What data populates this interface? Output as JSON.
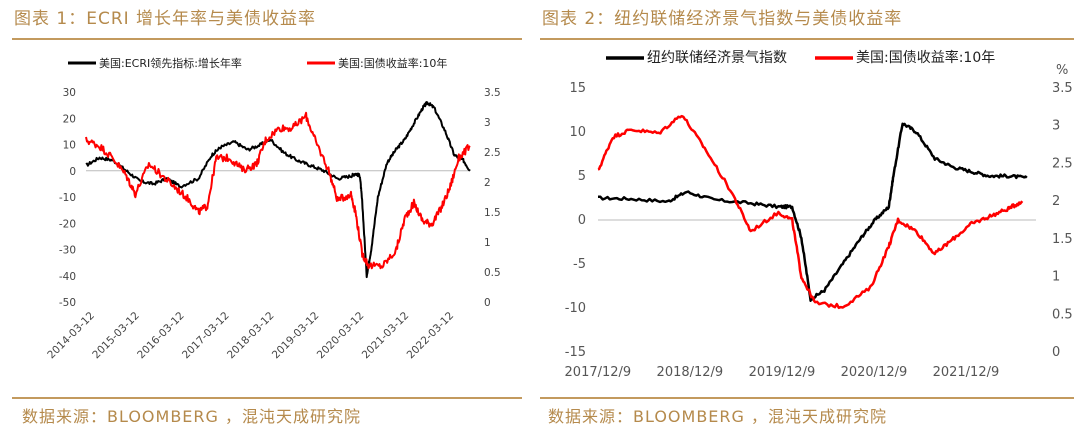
{
  "left_panel": {
    "title": "图表 1：ECRI 增长年率与美债收益率",
    "source": "数据来源：BLOOMBERG ，混沌天成研究院"
  },
  "right_panel": {
    "title": "图表 2：纽约联储经济景气指数与美债收益率",
    "source": "数据来源：BLOOMBERG ，混沌天成研究院"
  },
  "chart_data": [
    {
      "type": "line",
      "title": "",
      "x_ticks": [
        "2014-03-12",
        "2015-03-12",
        "2016-03-12",
        "2017-03-12",
        "2018-03-12",
        "2019-03-12",
        "2020-03-12",
        "2021-03-12",
        "2022-03-12"
      ],
      "x_range": [
        2014.0,
        2022.55
      ],
      "y_left": {
        "range": [
          -50,
          30
        ],
        "ticks": [
          30,
          20,
          10,
          0,
          -10,
          -20,
          -30,
          -40,
          -50
        ]
      },
      "y_right": {
        "range": [
          0,
          3.5
        ],
        "ticks": [
          "3.5",
          "3",
          "2.5",
          "2",
          "1.5",
          "1",
          "0.5",
          "0"
        ]
      },
      "legend_position": "top",
      "series": [
        {
          "name": "美国:ECRI领先指标:增长年率",
          "color": "#000000",
          "axis": "left",
          "points": [
            [
              2014.0,
              2
            ],
            [
              2014.3,
              5
            ],
            [
              2014.6,
              4
            ],
            [
              2014.9,
              0
            ],
            [
              2015.2,
              -4
            ],
            [
              2015.5,
              -5
            ],
            [
              2015.8,
              -3
            ],
            [
              2016.1,
              -6
            ],
            [
              2016.5,
              -3
            ],
            [
              2016.8,
              6
            ],
            [
              2017.0,
              9
            ],
            [
              2017.3,
              11
            ],
            [
              2017.6,
              8
            ],
            [
              2017.9,
              10
            ],
            [
              2018.1,
              12
            ],
            [
              2018.4,
              7
            ],
            [
              2018.7,
              4
            ],
            [
              2019.0,
              2
            ],
            [
              2019.3,
              0
            ],
            [
              2019.6,
              -3
            ],
            [
              2019.9,
              -2
            ],
            [
              2020.0,
              -1
            ],
            [
              2020.1,
              -2
            ],
            [
              2020.15,
              -12
            ],
            [
              2020.25,
              -40
            ],
            [
              2020.35,
              -30
            ],
            [
              2020.5,
              -10
            ],
            [
              2020.7,
              3
            ],
            [
              2020.9,
              8
            ],
            [
              2021.1,
              12
            ],
            [
              2021.3,
              18
            ],
            [
              2021.5,
              24
            ],
            [
              2021.6,
              26
            ],
            [
              2021.75,
              24
            ],
            [
              2022.0,
              15
            ],
            [
              2022.2,
              6
            ],
            [
              2022.4,
              4
            ],
            [
              2022.55,
              0
            ]
          ]
        },
        {
          "name": "美国:国债收益率:10年",
          "color": "#ff0000",
          "axis": "right",
          "points": [
            [
              2014.0,
              2.7
            ],
            [
              2014.3,
              2.6
            ],
            [
              2014.6,
              2.4
            ],
            [
              2014.9,
              2.1
            ],
            [
              2015.1,
              1.8
            ],
            [
              2015.4,
              2.3
            ],
            [
              2015.7,
              2.1
            ],
            [
              2016.0,
              1.9
            ],
            [
              2016.3,
              1.7
            ],
            [
              2016.5,
              1.5
            ],
            [
              2016.7,
              1.6
            ],
            [
              2016.9,
              2.4
            ],
            [
              2017.2,
              2.4
            ],
            [
              2017.5,
              2.2
            ],
            [
              2017.8,
              2.3
            ],
            [
              2018.0,
              2.7
            ],
            [
              2018.3,
              2.9
            ],
            [
              2018.6,
              2.9
            ],
            [
              2018.9,
              3.1
            ],
            [
              2019.1,
              2.7
            ],
            [
              2019.4,
              2.2
            ],
            [
              2019.6,
              1.7
            ],
            [
              2019.9,
              1.8
            ],
            [
              2020.0,
              1.5
            ],
            [
              2020.15,
              0.8
            ],
            [
              2020.3,
              0.6
            ],
            [
              2020.6,
              0.6
            ],
            [
              2020.9,
              0.85
            ],
            [
              2021.1,
              1.4
            ],
            [
              2021.3,
              1.65
            ],
            [
              2021.5,
              1.35
            ],
            [
              2021.7,
              1.3
            ],
            [
              2021.9,
              1.55
            ],
            [
              2022.1,
              1.9
            ],
            [
              2022.3,
              2.4
            ],
            [
              2022.55,
              2.6
            ]
          ]
        }
      ]
    },
    {
      "type": "line",
      "title": "",
      "x_ticks": [
        "2017/12/9",
        "2018/12/9",
        "2019/12/9",
        "2020/12/9",
        "2021/12/9"
      ],
      "x_range": [
        2017.94,
        2022.7
      ],
      "y_left": {
        "range": [
          -15,
          15
        ],
        "ticks": [
          15,
          10,
          5,
          0,
          -5,
          -10,
          -15
        ]
      },
      "y_right": {
        "range": [
          0,
          3.5
        ],
        "unit": "%",
        "ticks": [
          "3.5",
          "3",
          "2.5",
          "2",
          "1.5",
          "1",
          "0.5",
          "0"
        ]
      },
      "legend_position": "top",
      "series": [
        {
          "name": "纽约联储经济景气指数",
          "color": "#000000",
          "axis": "left",
          "points": [
            [
              2017.94,
              2.5
            ],
            [
              2018.3,
              2.4
            ],
            [
              2018.7,
              2.1
            ],
            [
              2018.9,
              3.2
            ],
            [
              2019.2,
              2.3
            ],
            [
              2019.6,
              1.9
            ],
            [
              2019.9,
              1.5
            ],
            [
              2020.05,
              1.5
            ],
            [
              2020.15,
              -2
            ],
            [
              2020.25,
              -9
            ],
            [
              2020.4,
              -8
            ],
            [
              2020.6,
              -5
            ],
            [
              2020.8,
              -2
            ],
            [
              2020.95,
              0
            ],
            [
              2021.1,
              1.5
            ],
            [
              2021.15,
              5
            ],
            [
              2021.25,
              11
            ],
            [
              2021.4,
              10
            ],
            [
              2021.6,
              7
            ],
            [
              2021.8,
              6
            ],
            [
              2022.0,
              5.5
            ],
            [
              2022.2,
              5
            ],
            [
              2022.4,
              5
            ],
            [
              2022.6,
              4.8
            ]
          ]
        },
        {
          "name": "美国:国债收益率:10年",
          "color": "#ff0000",
          "axis": "right",
          "points": [
            [
              2017.94,
              2.4
            ],
            [
              2018.1,
              2.85
            ],
            [
              2018.3,
              2.95
            ],
            [
              2018.6,
              2.9
            ],
            [
              2018.85,
              3.15
            ],
            [
              2019.1,
              2.7
            ],
            [
              2019.4,
              2.1
            ],
            [
              2019.6,
              1.6
            ],
            [
              2019.9,
              1.85
            ],
            [
              2020.05,
              1.75
            ],
            [
              2020.15,
              1.0
            ],
            [
              2020.3,
              0.65
            ],
            [
              2020.6,
              0.6
            ],
            [
              2020.9,
              0.85
            ],
            [
              2021.1,
              1.4
            ],
            [
              2021.2,
              1.75
            ],
            [
              2021.4,
              1.6
            ],
            [
              2021.6,
              1.3
            ],
            [
              2021.8,
              1.5
            ],
            [
              2022.0,
              1.7
            ],
            [
              2022.2,
              1.8
            ],
            [
              2022.4,
              1.9
            ],
            [
              2022.55,
              2.0
            ]
          ]
        }
      ]
    }
  ]
}
